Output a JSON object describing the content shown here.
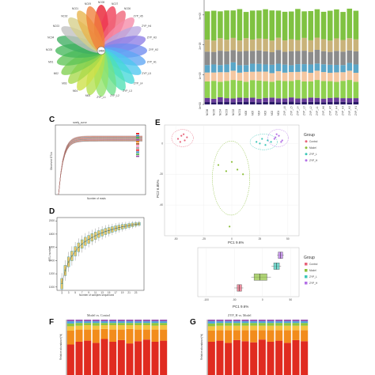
{
  "panels": {
    "C": "C",
    "D": "D",
    "E": "E",
    "F": "F",
    "G": "G"
  },
  "venn": {
    "center_label": "1469",
    "petals": [
      "NC08",
      "NC07",
      "NC06",
      "ZYP_H5",
      "ZYP_H4",
      "ZYP_H3",
      "ZYP_H2",
      "ZYP_H1",
      "ZYP_L5",
      "ZYP_L4",
      "ZYP_L3",
      "ZYP_L2",
      "ZYP_L1",
      "M05",
      "M04",
      "M03",
      "M02",
      "M01",
      "NC05",
      "NC04",
      "NC03",
      "NC02",
      "NC01",
      "NC09"
    ],
    "colors": [
      "#e8192c",
      "#ef3b55",
      "#f06478",
      "#f58aa8",
      "#b9a6e0",
      "#8d7de6",
      "#6f8cf0",
      "#5fa7f3",
      "#4fc6f0",
      "#45d9d9",
      "#4fe0b5",
      "#6ee08a",
      "#92e36a",
      "#b3e04e",
      "#cde046",
      "#a6d94a",
      "#80cf4f",
      "#5fc456",
      "#46b85c",
      "#3fae61",
      "#c0c0c0",
      "#d6d08a",
      "#e8b44a",
      "#f07f3a"
    ]
  },
  "stack_top": {
    "ytick_labels": [
      "0e+00",
      "1e+05",
      "2e+05",
      "3e+05"
    ],
    "ymax": 350000,
    "samples": [
      "NC06",
      "NC05",
      "NC04",
      "NC03",
      "NC02",
      "NC01",
      "M06",
      "M05",
      "M04",
      "M03",
      "M02",
      "M01",
      "ZYP_L6",
      "ZYP_L5",
      "ZYP_L4",
      "ZYP_L3",
      "ZYP_L2",
      "ZYP_L1",
      "ZYP_H6",
      "ZYP_H5",
      "ZYP_H4",
      "ZYP_H3",
      "ZYP_H2",
      "ZYP_H1"
    ],
    "layer_colors": [
      "#2a1a66",
      "#6a3d9a",
      "#8fd14f",
      "#f4c7a1",
      "#5aa6c8",
      "#8c8c8c",
      "#c9b37a",
      "#7fc241"
    ],
    "layers": [
      [
        8000,
        7000,
        9000,
        8000,
        7500,
        8500,
        9000,
        8000,
        7000,
        8500,
        9000,
        7500,
        8000,
        9500,
        7000,
        8000,
        8500,
        9000,
        7500,
        8000,
        9000,
        8500,
        7000,
        8000
      ],
      [
        14000,
        12000,
        15000,
        13000,
        12500,
        14000,
        13000,
        14500,
        12000,
        13500,
        14000,
        13000,
        12500,
        14000,
        13000,
        12000,
        14500,
        13000,
        12000,
        14000,
        13500,
        12500,
        14000,
        13000
      ],
      [
        55000,
        60000,
        52000,
        58000,
        62000,
        57000,
        54000,
        59000,
        61000,
        56000,
        53000,
        60000,
        58000,
        55000,
        62000,
        57000,
        54000,
        60000,
        59000,
        56000,
        53000,
        58000,
        61000,
        55000
      ],
      [
        30000,
        28000,
        32000,
        29000,
        31000,
        27000,
        33000,
        28000,
        30000,
        32000,
        29000,
        31000,
        28000,
        30000,
        27000,
        33000,
        29000,
        31000,
        30000,
        28000,
        32000,
        29000,
        31000,
        30000
      ],
      [
        25000,
        27000,
        24000,
        26000,
        28000,
        25000,
        23000,
        27000,
        26000,
        24000,
        28000,
        25000,
        27000,
        23000,
        26000,
        25000,
        28000,
        24000,
        26000,
        27000,
        25000,
        24000,
        26000,
        28000
      ],
      [
        45000,
        42000,
        48000,
        44000,
        41000,
        46000,
        47000,
        43000,
        45000,
        44000,
        42000,
        46000,
        43000,
        47000,
        44000,
        45000,
        42000,
        46000,
        44000,
        43000,
        47000,
        45000,
        42000,
        44000
      ],
      [
        40000,
        38000,
        42000,
        39000,
        41000,
        37000,
        43000,
        38000,
        40000,
        42000,
        39000,
        41000,
        38000,
        40000,
        37000,
        43000,
        39000,
        41000,
        40000,
        38000,
        42000,
        39000,
        41000,
        40000
      ],
      [
        95000,
        100000,
        90000,
        98000,
        92000,
        105000,
        88000,
        97000,
        94000,
        99000,
        101000,
        91000,
        96000,
        93000,
        104000,
        89000,
        98000,
        95000,
        92000,
        100000,
        97000,
        94000,
        99000,
        96000
      ]
    ]
  },
  "chart_data": [
    {
      "type": "line",
      "panel": "C",
      "title": "rarefy_curve",
      "xlabel": "Number of reads",
      "ylabel": "Observed OTUs",
      "n_series": 24,
      "plateau_range": [
        1380,
        1520
      ],
      "ylim": [
        0,
        1800
      ]
    },
    {
      "type": "box",
      "panel": "D",
      "xlabel": "Number of samples sequenced",
      "ylabel": "OTU number",
      "ytick_labels": [
        "1000",
        "1200",
        "1400",
        "1600",
        "1800",
        "2000"
      ],
      "xtick_labels": [
        "1",
        "3",
        "5",
        "7",
        "9",
        "11",
        "13",
        "15",
        "17",
        "19",
        "21",
        "23"
      ],
      "x": [
        1,
        2,
        3,
        4,
        5,
        6,
        7,
        8,
        9,
        10,
        11,
        12,
        13,
        14,
        15,
        16,
        17,
        18,
        19,
        20,
        21,
        22,
        23,
        24
      ],
      "medians": [
        1050,
        1250,
        1380,
        1470,
        1540,
        1600,
        1650,
        1690,
        1720,
        1750,
        1775,
        1800,
        1820,
        1840,
        1855,
        1870,
        1885,
        1898,
        1910,
        1920,
        1930,
        1940,
        1948,
        1955
      ],
      "ylim": [
        950,
        2050
      ]
    },
    {
      "type": "scatter",
      "panel": "E",
      "xlabel": "PC1 9.6%",
      "ylabel": "PC2 6.85%",
      "xtick_labels": [
        "-50",
        "-25",
        "0",
        "25",
        "50"
      ],
      "ytick_labels": [
        "-40",
        "-20",
        "0"
      ],
      "xlim": [
        -60,
        60
      ],
      "ylim": [
        -60,
        12
      ],
      "legend_title": "Group",
      "legend_position": "right",
      "groups": [
        {
          "name": "Control",
          "color": "#e7637a",
          "points": [
            [
              -48,
              3
            ],
            [
              -45,
              5
            ],
            [
              -42,
              2
            ],
            [
              -40,
              4
            ],
            [
              -46,
              1
            ],
            [
              -43,
              6
            ]
          ]
        },
        {
          "name": "Model",
          "color": "#8bbf3a",
          "points": [
            [
              -12,
              -14
            ],
            [
              -5,
              -18
            ],
            [
              5,
              -17
            ],
            [
              10,
              -20
            ],
            [
              -2,
              -54
            ],
            [
              0,
              -12
            ]
          ]
        },
        {
          "name": "ZYP_L",
          "color": "#3cc6b8",
          "points": [
            [
              22,
              1
            ],
            [
              27,
              3
            ],
            [
              32,
              2
            ],
            [
              30,
              -1
            ],
            [
              25,
              0
            ],
            [
              35,
              1
            ]
          ]
        },
        {
          "name": "ZYP_H",
          "color": "#b370e6",
          "points": [
            [
              38,
              3
            ],
            [
              42,
              5
            ],
            [
              45,
              2
            ],
            [
              40,
              6
            ],
            [
              44,
              1
            ],
            [
              39,
              4
            ]
          ]
        }
      ]
    },
    {
      "type": "box",
      "panel": "E-lower",
      "xlabel": "PC1 9.6%",
      "xtick_labels": [
        "-100",
        "-50",
        "0",
        "50"
      ],
      "xlim": [
        -115,
        65
      ],
      "legend_title": "Group",
      "groups": [
        {
          "name": "Control",
          "color": "#e7637a",
          "q1": -45,
          "median": -41,
          "q3": -37,
          "min": -50,
          "max": -34
        },
        {
          "name": "Model",
          "color": "#8bbf3a",
          "q1": -15,
          "median": -5,
          "q3": 8,
          "min": -20,
          "max": 15
        },
        {
          "name": "ZYP_L",
          "color": "#3cc6b8",
          "q1": 20,
          "median": 25,
          "q3": 30,
          "min": 16,
          "max": 33
        },
        {
          "name": "ZYP_H",
          "color": "#b370e6",
          "q1": 28,
          "median": 32,
          "q3": 36,
          "min": 26,
          "max": 38
        }
      ]
    },
    {
      "type": "bar",
      "panel": "F",
      "stacked": true,
      "title": "Model vs. Control",
      "ylabel": "Relative abundance(%)",
      "n_bars": 12,
      "layer_colors": [
        "#e02b20",
        "#f28c1c",
        "#f5c242",
        "#8dc63f",
        "#4aa3df",
        "#9b59b6"
      ],
      "layers": [
        [
          55,
          60,
          62,
          58,
          65,
          60,
          63,
          57,
          61,
          64,
          60,
          62
        ],
        [
          25,
          22,
          20,
          24,
          18,
          22,
          19,
          26,
          21,
          18,
          22,
          20
        ],
        [
          8,
          7,
          8,
          7,
          7,
          8,
          8,
          7,
          8,
          8,
          7,
          8
        ],
        [
          5,
          5,
          4,
          5,
          4,
          4,
          4,
          4,
          4,
          4,
          5,
          4
        ],
        [
          4,
          3,
          3,
          3,
          3,
          3,
          3,
          3,
          3,
          3,
          3,
          3
        ],
        [
          3,
          3,
          3,
          3,
          3,
          3,
          3,
          3,
          3,
          3,
          3,
          3
        ]
      ]
    },
    {
      "type": "bar",
      "panel": "G",
      "stacked": true,
      "title": "ZYP_H vs. Model",
      "ylabel": "Relative abundance(%)",
      "n_bars": 12,
      "layer_colors": [
        "#e02b20",
        "#f28c1c",
        "#f5c242",
        "#8dc63f",
        "#4aa3df",
        "#9b59b6"
      ],
      "layers": [
        [
          60,
          62,
          58,
          63,
          61,
          59,
          64,
          60,
          62,
          58,
          63,
          61
        ],
        [
          20,
          19,
          23,
          18,
          20,
          22,
          17,
          21,
          19,
          23,
          18,
          20
        ],
        [
          8,
          8,
          8,
          8,
          8,
          8,
          8,
          8,
          8,
          8,
          8,
          8
        ],
        [
          5,
          5,
          5,
          5,
          5,
          5,
          5,
          5,
          5,
          5,
          5,
          5
        ],
        [
          4,
          3,
          3,
          3,
          3,
          3,
          3,
          3,
          3,
          3,
          3,
          3
        ],
        [
          3,
          3,
          3,
          3,
          3,
          3,
          3,
          3,
          3,
          3,
          3,
          3
        ]
      ]
    }
  ]
}
